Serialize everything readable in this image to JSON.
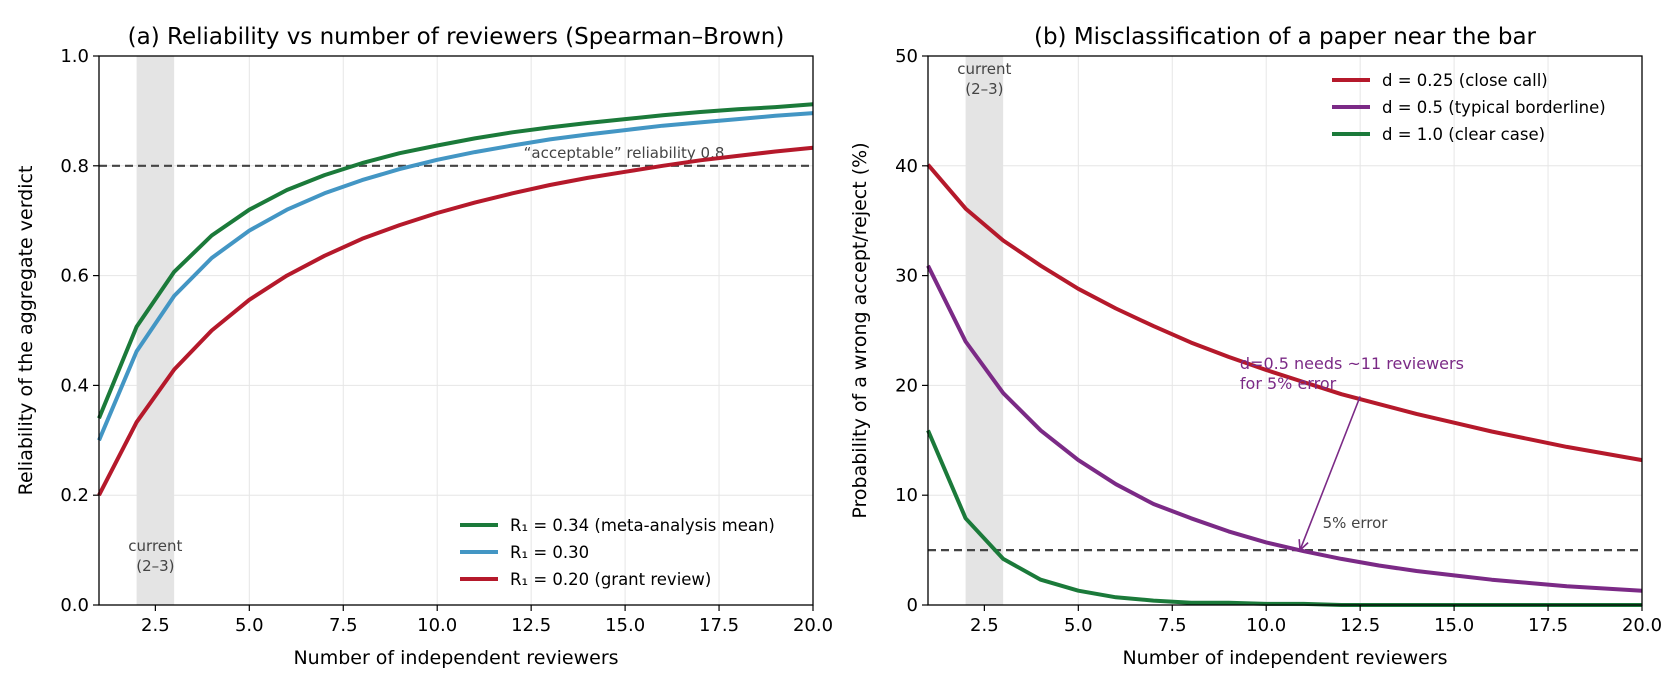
{
  "chart_data": [
    {
      "type": "line",
      "title": "(a) Reliability vs number of reviewers (Spearman–Brown)",
      "xlabel": "Number of independent reviewers",
      "ylabel": "Reliability of the aggregate verdict",
      "xlim": [
        1,
        20
      ],
      "ylim": [
        0,
        1
      ],
      "xticks": [
        2.5,
        5,
        7.5,
        10,
        12.5,
        15,
        17.5,
        20
      ],
      "xtick_labels": [
        "2.5",
        "5.0",
        "7.5",
        "10.0",
        "12.5",
        "15.0",
        "17.5",
        "20.0"
      ],
      "yticks": [
        0,
        0.2,
        0.4,
        0.6,
        0.8,
        1.0
      ],
      "ytick_labels": [
        "0.0",
        "0.2",
        "0.4",
        "0.6",
        "0.8",
        "1.0"
      ],
      "grid": true,
      "legend_position": "bottom-right",
      "shaded_band": {
        "x": [
          2,
          3
        ],
        "label_line1": "current",
        "label_line2": "(2–3)",
        "color": "#e4e4e4"
      },
      "reference_line": {
        "y": 0.8,
        "label": "“acceptable” reliability 0.8",
        "color": "#444444"
      },
      "x": [
        1,
        2,
        3,
        4,
        5,
        6,
        7,
        8,
        9,
        10,
        11,
        12,
        13,
        14,
        15,
        16,
        17,
        18,
        19,
        20
      ],
      "series": [
        {
          "name": "R₁ = 0.34 (meta-analysis mean)",
          "color": "#1b7a3a",
          "values": [
            0.34,
            0.507,
            0.607,
            0.673,
            0.72,
            0.756,
            0.783,
            0.805,
            0.823,
            0.837,
            0.85,
            0.861,
            0.87,
            0.878,
            0.885,
            0.892,
            0.898,
            0.903,
            0.907,
            0.912
          ]
        },
        {
          "name": "R₁ = 0.30",
          "color": "#4396c4",
          "values": [
            0.3,
            0.462,
            0.563,
            0.632,
            0.682,
            0.72,
            0.75,
            0.774,
            0.794,
            0.811,
            0.825,
            0.837,
            0.848,
            0.857,
            0.865,
            0.873,
            0.879,
            0.885,
            0.891,
            0.896
          ]
        },
        {
          "name": "R₁ = 0.20 (grant review)",
          "color": "#b5192b",
          "values": [
            0.2,
            0.333,
            0.429,
            0.5,
            0.556,
            0.6,
            0.636,
            0.667,
            0.692,
            0.714,
            0.733,
            0.75,
            0.765,
            0.778,
            0.789,
            0.8,
            0.81,
            0.818,
            0.826,
            0.833
          ]
        }
      ]
    },
    {
      "type": "line",
      "title": "(b) Misclassification of a paper near the bar",
      "xlabel": "Number of independent reviewers",
      "ylabel": "Probability of a wrong accept/reject (%)",
      "xlim": [
        1,
        20
      ],
      "ylim": [
        0,
        50
      ],
      "xticks": [
        2.5,
        5,
        7.5,
        10,
        12.5,
        15,
        17.5,
        20
      ],
      "xtick_labels": [
        "2.5",
        "5.0",
        "7.5",
        "10.0",
        "12.5",
        "15.0",
        "17.5",
        "20.0"
      ],
      "yticks": [
        0,
        10,
        20,
        30,
        40,
        50
      ],
      "ytick_labels": [
        "0",
        "10",
        "20",
        "30",
        "40",
        "50"
      ],
      "grid": true,
      "legend_position": "top-right",
      "shaded_band": {
        "x": [
          2,
          3
        ],
        "label_line1": "current",
        "label_line2": "(2–3)",
        "color": "#e4e4e4"
      },
      "reference_line": {
        "y": 5,
        "label": "5% error",
        "color": "#444444"
      },
      "annotation": {
        "line1": "d=0.5 needs ~11 reviewers",
        "line2": "for 5% error",
        "text_at": [
          9.3,
          21.5
        ],
        "arrow_from": [
          12.5,
          19.0
        ],
        "arrow_to": [
          10.9,
          5.0
        ],
        "color": "#7b2a86"
      },
      "x": [
        1,
        2,
        3,
        4,
        5,
        6,
        7,
        8,
        9,
        10,
        11,
        12,
        13,
        14,
        15,
        16,
        17,
        18,
        19,
        20
      ],
      "series": [
        {
          "name": "d = 0.25 (close call)",
          "color": "#b5192b",
          "values": [
            40.1,
            36.1,
            33.2,
            30.9,
            28.8,
            27.0,
            25.4,
            23.9,
            22.6,
            21.4,
            20.3,
            19.2,
            18.3,
            17.4,
            16.6,
            15.8,
            15.1,
            14.4,
            13.8,
            13.2
          ]
        },
        {
          "name": "d = 0.5 (typical borderline)",
          "color": "#7b2a86",
          "values": [
            30.9,
            24.0,
            19.3,
            15.9,
            13.2,
            11.0,
            9.2,
            7.9,
            6.7,
            5.7,
            4.9,
            4.2,
            3.6,
            3.1,
            2.7,
            2.3,
            2.0,
            1.7,
            1.5,
            1.3
          ]
        },
        {
          "name": "d = 1.0 (clear case)",
          "color": "#1b7a3a",
          "values": [
            15.9,
            7.9,
            4.2,
            2.3,
            1.3,
            0.7,
            0.4,
            0.2,
            0.2,
            0.1,
            0.1,
            0.0,
            0.0,
            0.0,
            0.0,
            0.0,
            0.0,
            0.0,
            0.0,
            0.0
          ]
        }
      ]
    }
  ]
}
